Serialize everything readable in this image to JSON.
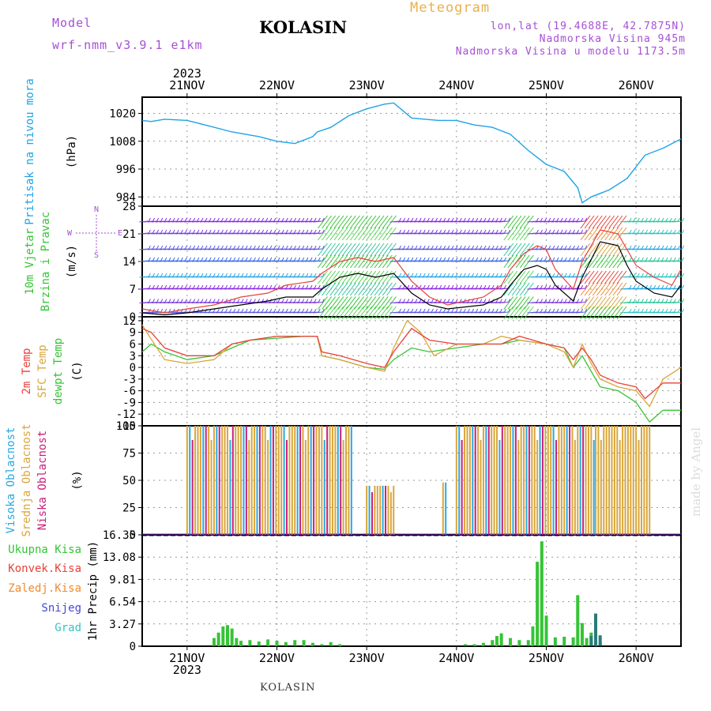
{
  "header": {
    "model_label": "Model",
    "model_name": "wrf-nmm_v3.9.1 e1km",
    "title": "KOLASIN",
    "meteogram": "Meteogram",
    "lonlat": "lon,lat (19.4688E, 42.7875N)",
    "elevation": "Nadmorska Visina 945m",
    "model_elevation": "Nadmorska Visina u modelu 1173.5m"
  },
  "watermark": "made by Angel",
  "footer_station": "KOLASIN",
  "colors": {
    "pressure": "#1fa3e6",
    "wind_mean": "#000000",
    "wind_gust": "#e8413a",
    "t2m": "#e8413a",
    "sfc": "#d9a63a",
    "dewpt": "#35c435",
    "cloud_high": "#2aa8e0",
    "cloud_mid": "#d9a63a",
    "cloud_low": "#c8207a",
    "precip_total": "#35c435",
    "precip_conv": "#e8413a",
    "precip_frozen": "#f08a30",
    "precip_snow": "#4646d6",
    "precip_hail": "#35c4c4"
  },
  "chart_data": {
    "type": "meteogram",
    "time_axis": {
      "year_label": "2023",
      "day_labels": [
        "21NOV",
        "22NOV",
        "23NOV",
        "24NOV",
        "25NOV",
        "26NOV"
      ],
      "start_day": 20.5,
      "end_day": 26.5,
      "grid": true
    },
    "panels": [
      {
        "id": "pressure",
        "type": "line",
        "labels": [
          "Pritisak na nivou mora",
          "(hPa)"
        ],
        "yticks": [
          "1020",
          "1008",
          "996",
          "984"
        ],
        "ylim": [
          980,
          1027
        ],
        "series": [
          {
            "x": [
              20.5,
              20.6,
              20.75,
              21.0,
              21.2,
              21.5,
              21.8,
              22.0,
              22.2,
              22.4,
              22.45,
              22.6,
              22.8,
              23.0,
              23.2,
              23.3,
              23.5,
              23.8,
              24.0,
              24.2,
              24.4,
              24.6,
              24.8,
              25.0,
              25.2,
              25.35,
              25.4,
              25.5,
              25.7,
              25.9,
              26.0,
              26.1,
              26.3,
              26.5
            ],
            "y": [
              1017,
              1016.5,
              1017.5,
              1017,
              1015,
              1012,
              1010,
              1008,
              1007,
              1010,
              1012,
              1014,
              1019,
              1022,
              1024,
              1024.5,
              1018,
              1017,
              1017,
              1015,
              1014,
              1011,
              1004,
              998,
              995,
              988,
              981.5,
              984,
              987,
              992,
              997,
              1002,
              1005,
              1009
            ]
          }
        ]
      },
      {
        "id": "wind",
        "type": "line",
        "labels": [
          "10m Vjetar",
          "Brzina i Pravac",
          "(m/s)"
        ],
        "direction_key": [
          "N",
          "W",
          "E",
          "S"
        ],
        "yticks": [
          "28",
          "21",
          "14",
          "7",
          "0"
        ],
        "ylim": [
          0,
          28
        ],
        "series": [
          {
            "name": "mean",
            "x": [
              20.5,
              20.75,
              21.0,
              21.3,
              21.6,
              21.9,
              22.1,
              22.4,
              22.5,
              22.7,
              22.9,
              23.1,
              23.3,
              23.5,
              23.7,
              23.9,
              24.1,
              24.3,
              24.5,
              24.6,
              24.75,
              24.9,
              25.0,
              25.1,
              25.3,
              25.4,
              25.6,
              25.8,
              25.9,
              26.0,
              26.2,
              26.4,
              26.5
            ],
            "y": [
              1,
              0.5,
              1,
              2,
              3,
              4,
              5,
              5,
              7,
              10,
              11,
              10,
              11,
              6,
              3,
              2,
              2.5,
              3,
              5,
              8,
              12,
              13,
              12,
              8,
              4,
              10,
              19,
              18,
              13,
              9,
              6,
              5,
              8
            ]
          },
          {
            "name": "gust",
            "x": [
              20.5,
              20.75,
              21.0,
              21.3,
              21.6,
              21.9,
              22.1,
              22.4,
              22.5,
              22.7,
              22.9,
              23.1,
              23.3,
              23.5,
              23.7,
              23.9,
              24.1,
              24.3,
              24.5,
              24.6,
              24.75,
              24.9,
              25.0,
              25.1,
              25.3,
              25.4,
              25.6,
              25.8,
              25.9,
              26.0,
              26.2,
              26.4,
              26.5
            ],
            "y": [
              2,
              1,
              2,
              3,
              5,
              6,
              8,
              9,
              11,
              14,
              15,
              14,
              15,
              9,
              5,
              3,
              4,
              5,
              8,
              12,
              16,
              18,
              17,
              12,
              7,
              14,
              22,
              21,
              17,
              13,
              10,
              8,
              12
            ]
          }
        ]
      },
      {
        "id": "temperature",
        "type": "line",
        "labels": [
          "2m Temp",
          "SFC Temp",
          "dewpt Temp",
          "(C)"
        ],
        "yticks": [
          "12",
          "9",
          "6",
          "3",
          "0",
          "-3",
          "-6",
          "-9",
          "-12",
          "-15"
        ],
        "ylim": [
          -15,
          13
        ],
        "series": [
          {
            "name": "2m",
            "x": [
              20.5,
              20.6,
              20.75,
              21.0,
              21.3,
              21.5,
              21.7,
              22.0,
              22.3,
              22.45,
              22.5,
              22.7,
              23.0,
              23.2,
              23.3,
              23.5,
              23.7,
              24.0,
              24.3,
              24.5,
              24.7,
              25.0,
              25.2,
              25.3,
              25.4,
              25.5,
              25.6,
              25.8,
              26.0,
              26.1,
              26.3,
              26.5
            ],
            "y": [
              10,
              9,
              5,
              3,
              3,
              6,
              7,
              8,
              8,
              8,
              4,
              3,
              1,
              0,
              4,
              10,
              7,
              6,
              6,
              6,
              8,
              6,
              5,
              2,
              5,
              2,
              -2,
              -4,
              -5,
              -8,
              -4,
              -4
            ]
          },
          {
            "name": "sfc",
            "x": [
              20.5,
              20.55,
              20.75,
              21.0,
              21.3,
              21.5,
              21.7,
              22.0,
              22.3,
              22.45,
              22.5,
              22.7,
              23.0,
              23.2,
              23.3,
              23.45,
              23.6,
              23.75,
              24.0,
              24.3,
              24.5,
              24.7,
              25.0,
              25.2,
              25.3,
              25.4,
              25.5,
              25.6,
              25.8,
              26.0,
              26.15,
              26.3,
              26.5
            ],
            "y": [
              11,
              9,
              2,
              1,
              2,
              6,
              7,
              8,
              8,
              8,
              3,
              2,
              0,
              -1,
              5,
              12,
              9,
              3,
              6,
              6,
              8,
              7,
              6,
              4,
              0,
              6,
              1,
              -3,
              -5,
              -6,
              -10,
              -3,
              0
            ]
          },
          {
            "name": "dewpt",
            "x": [
              20.5,
              20.6,
              20.75,
              21.0,
              21.3,
              21.5,
              21.7,
              22.0,
              22.3,
              22.45,
              22.5,
              22.7,
              23.0,
              23.2,
              23.3,
              23.5,
              23.7,
              24.0,
              24.3,
              24.5,
              24.7,
              25.0,
              25.2,
              25.3,
              25.4,
              25.5,
              25.6,
              25.8,
              26.0,
              26.15,
              26.3,
              26.5
            ],
            "y": [
              4,
              6,
              4,
              2,
              3,
              5,
              7,
              7.5,
              8,
              8,
              3,
              2,
              0,
              -0.5,
              2,
              5,
              4,
              5,
              6,
              6,
              7,
              6,
              5,
              0,
              3,
              -1,
              -5,
              -6,
              -9,
              -14,
              -11,
              -11
            ]
          }
        ]
      },
      {
        "id": "clouds",
        "type": "bar",
        "labels": [
          "Visoka Oblacnost",
          "Srednja Oblacnost",
          "Niska Oblacnost",
          "(%)"
        ],
        "yticks": [
          "100",
          "75",
          "50",
          "25",
          "0"
        ],
        "ylim": [
          0,
          100
        ],
        "segments": [
          {
            "x": [
              21.0,
              22.85
            ],
            "value": 100
          },
          {
            "x": [
              23.0,
              23.3
            ],
            "value": 45
          },
          {
            "x": [
              23.85,
              23.9
            ],
            "value": 48
          },
          {
            "x": [
              24.0,
              25.55
            ],
            "value": 100
          },
          {
            "x": [
              25.55,
              26.15
            ],
            "value": 100
          }
        ]
      },
      {
        "id": "precip",
        "type": "bar",
        "labels": [
          "Ukupna Kisa",
          "Konvek.Kisa",
          "Zaledj.Kisa",
          "Snijeg",
          "Grad",
          "1hr Precip (mm)"
        ],
        "yticks": [
          "16.35",
          "13.08",
          "9.81",
          "6.54",
          "3.27",
          "0"
        ],
        "ylim": [
          0,
          16.35
        ],
        "series": [
          {
            "name": "Ukupna Kisa",
            "x": [
              21.3,
              21.35,
              21.4,
              21.45,
              21.5,
              21.55,
              21.6,
              21.7,
              21.8,
              21.9,
              22.0,
              22.1,
              22.2,
              22.3,
              22.4,
              22.5,
              22.6,
              22.7,
              24.1,
              24.2,
              24.3,
              24.4,
              24.45,
              24.5,
              24.6,
              24.7,
              24.8,
              24.85,
              24.9,
              24.95,
              25.0,
              25.1,
              25.2,
              25.3,
              25.35,
              25.4,
              25.45,
              25.5,
              25.6
            ],
            "y": [
              1.2,
              2.0,
              2.9,
              3.1,
              2.6,
              1.2,
              0.8,
              0.9,
              0.7,
              1.0,
              0.8,
              0.6,
              0.9,
              0.9,
              0.5,
              0.3,
              0.6,
              0.3,
              0.3,
              0.3,
              0.5,
              0.9,
              1.5,
              1.9,
              1.2,
              0.9,
              0.9,
              2.9,
              12.4,
              15.4,
              4.5,
              1.3,
              1.4,
              1.3,
              7.5,
              3.4,
              1.2,
              2.0,
              0.6
            ]
          },
          {
            "name": "Snijeg",
            "x": [
              25.5,
              25.55,
              25.6
            ],
            "y": [
              1.5,
              4.8,
              1.6
            ]
          }
        ]
      }
    ]
  }
}
